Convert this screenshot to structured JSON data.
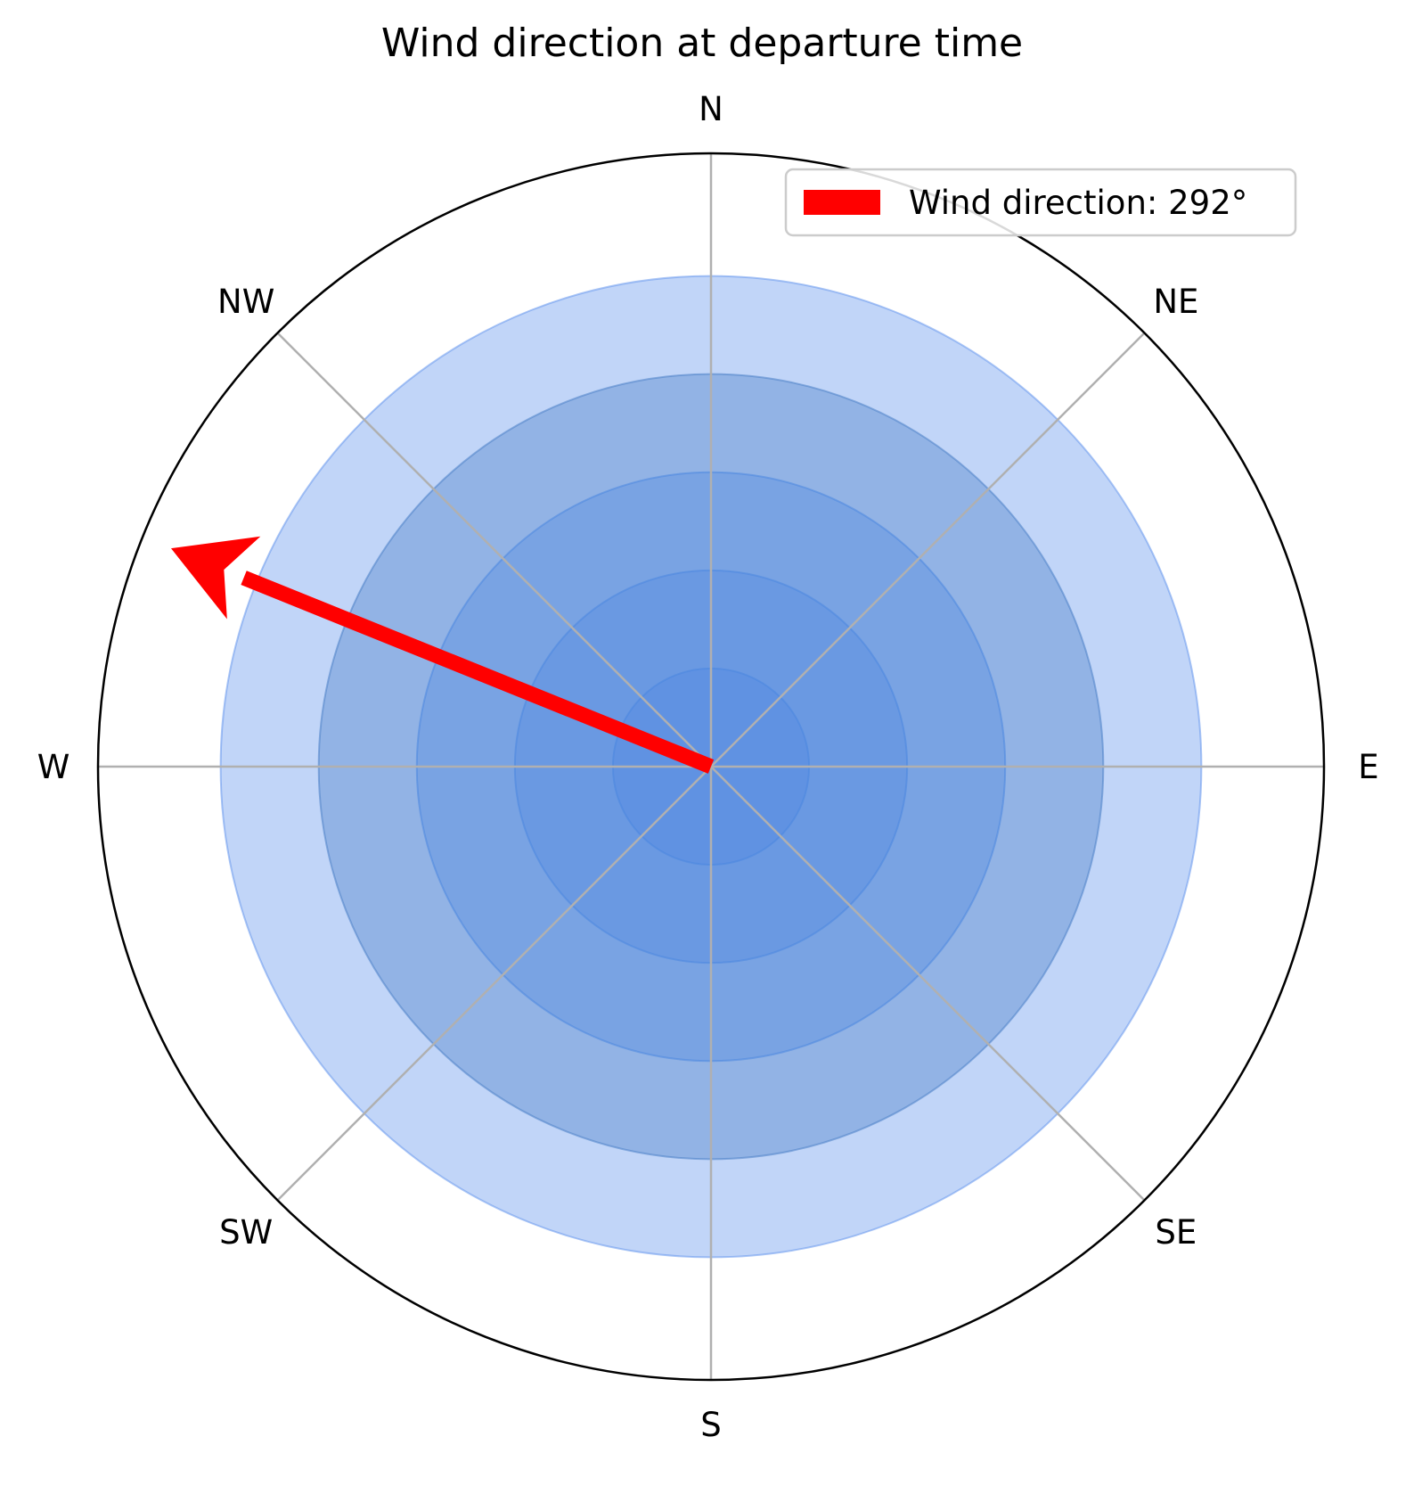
{
  "chart_data": {
    "type": "polar",
    "title": "Wind direction at departure time",
    "direction_labels": [
      {
        "label": "N",
        "angle_deg": 0
      },
      {
        "label": "NE",
        "angle_deg": 45
      },
      {
        "label": "E",
        "angle_deg": 90
      },
      {
        "label": "SE",
        "angle_deg": 135
      },
      {
        "label": "S",
        "angle_deg": 180
      },
      {
        "label": "SW",
        "angle_deg": 225
      },
      {
        "label": "W",
        "angle_deg": 270
      },
      {
        "label": "NW",
        "angle_deg": 315
      }
    ],
    "radial_ylim": [
      0,
      1
    ],
    "rings": [
      {
        "radius": 0.8,
        "color": "#6495ED",
        "alpha": 0.4
      },
      {
        "radius": 0.64,
        "color": "#4A7FC7",
        "alpha": 0.4
      },
      {
        "radius": 0.48,
        "color": "#4A86E0",
        "alpha": 0.35
      },
      {
        "radius": 0.32,
        "color": "#4A86E0",
        "alpha": 0.3
      },
      {
        "radius": 0.16,
        "color": "#4A86E0",
        "alpha": 0.3
      }
    ],
    "arrow": {
      "direction_deg": 292,
      "length": 0.95,
      "color": "#FF0000"
    },
    "legend": {
      "placement": "upper-right",
      "entries": [
        {
          "label": "Wind direction: 292°",
          "color": "#FF0000"
        }
      ]
    },
    "grid": true
  }
}
